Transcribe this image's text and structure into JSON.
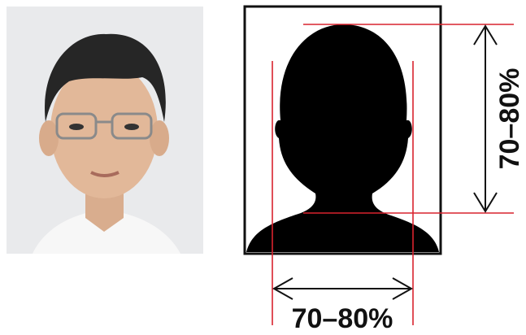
{
  "diagram": {
    "width_label": "70–80%",
    "height_label": "70–80%"
  }
}
